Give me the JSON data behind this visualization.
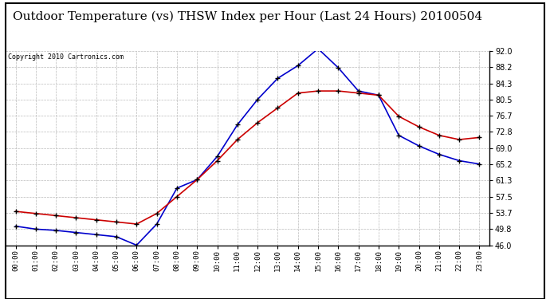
{
  "title": "Outdoor Temperature (vs) THSW Index per Hour (Last 24 Hours) 20100504",
  "copyright": "Copyright 2010 Cartronics.com",
  "hours": [
    "00:00",
    "01:00",
    "02:00",
    "03:00",
    "04:00",
    "05:00",
    "06:00",
    "07:00",
    "08:00",
    "09:00",
    "10:00",
    "11:00",
    "12:00",
    "13:00",
    "14:00",
    "15:00",
    "16:00",
    "17:00",
    "18:00",
    "19:00",
    "20:00",
    "21:00",
    "22:00",
    "23:00"
  ],
  "temp_red": [
    54.0,
    53.5,
    53.0,
    52.5,
    52.0,
    51.5,
    51.0,
    53.5,
    57.5,
    61.5,
    66.0,
    71.0,
    75.0,
    78.5,
    82.0,
    82.5,
    82.5,
    82.0,
    81.5,
    76.5,
    74.0,
    72.0,
    71.0,
    71.5
  ],
  "thsw_blue": [
    50.5,
    49.8,
    49.5,
    49.0,
    48.5,
    48.0,
    46.0,
    51.0,
    59.5,
    61.5,
    67.0,
    74.5,
    80.5,
    85.5,
    88.5,
    92.5,
    88.0,
    82.5,
    81.5,
    72.0,
    69.5,
    67.5,
    66.0,
    65.2
  ],
  "ylim": [
    46.0,
    92.0
  ],
  "yticks": [
    46.0,
    49.8,
    53.7,
    57.5,
    61.3,
    65.2,
    69.0,
    72.8,
    76.7,
    80.5,
    84.3,
    88.2,
    92.0
  ],
  "temp_color": "#cc0000",
  "thsw_color": "#0000cc",
  "background_color": "#ffffff",
  "grid_color": "#bbbbbb",
  "title_fontsize": 11,
  "copyright_fontsize": 6,
  "marker": "+",
  "marker_color": "#000000",
  "marker_size": 5,
  "line_width": 1.2
}
